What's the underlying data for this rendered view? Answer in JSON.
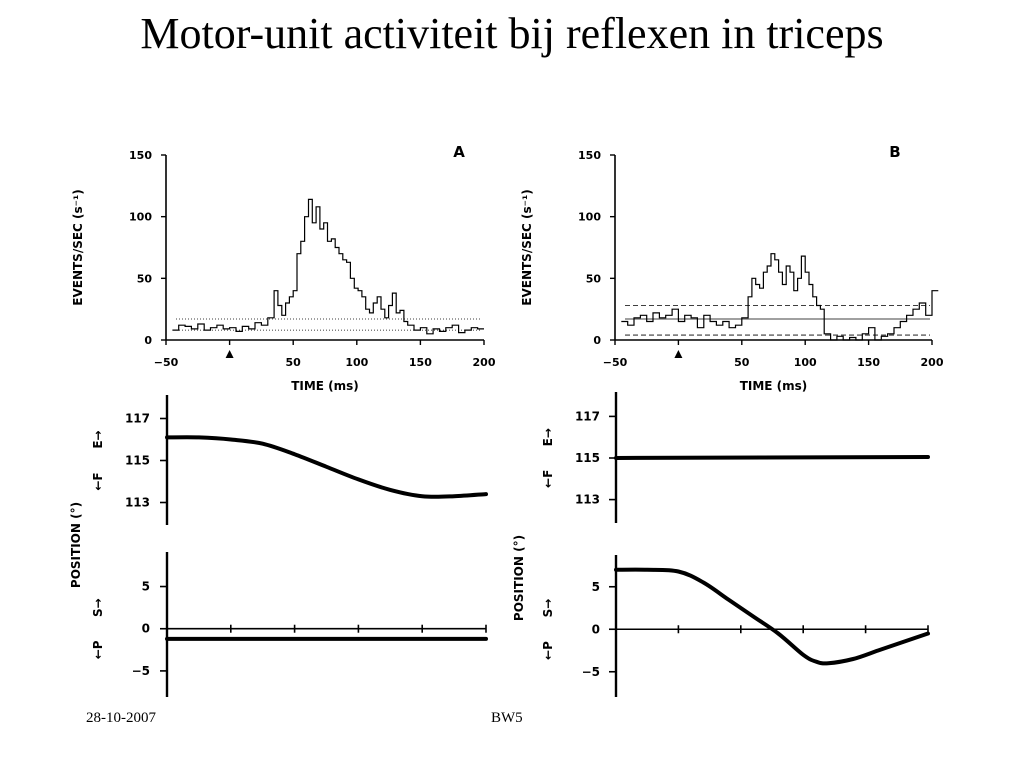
{
  "slide": {
    "title": "Motor-unit activiteit bij reflexen in triceps",
    "footer_left": "28-10-2007",
    "footer_center": "BW5"
  },
  "chart_data": [
    {
      "panel": "A",
      "type": "line",
      "subtype": "step-histogram",
      "ylabel": "EVENTS/SEC (s⁻¹)",
      "xlabel": "TIME (ms)",
      "xlim": [
        -50,
        200
      ],
      "ylim": [
        0,
        150
      ],
      "xticks": [
        -50,
        0,
        50,
        100,
        150,
        200
      ],
      "xtick_labels": [
        "−50",
        "",
        "50",
        "100",
        "150",
        "200"
      ],
      "yticks": [
        0,
        50,
        100,
        150
      ],
      "stimulus_marker_x": 0,
      "series": [
        {
          "style": "step",
          "x": [
            -45,
            -40,
            -35,
            -30,
            -25,
            -20,
            -15,
            -10,
            -5,
            0,
            5,
            10,
            15,
            20,
            25,
            30,
            35,
            38,
            41,
            44,
            47,
            50,
            53,
            56,
            59,
            62,
            65,
            68,
            71,
            74,
            77,
            80,
            83,
            86,
            89,
            92,
            95,
            98,
            101,
            104,
            107,
            110,
            113,
            116,
            119,
            122,
            125,
            128,
            131,
            134,
            137,
            140,
            145,
            150,
            155,
            160,
            165,
            170,
            175,
            180,
            185,
            190,
            195
          ],
          "y": [
            8,
            12,
            11,
            9,
            13,
            8,
            10,
            12,
            9,
            10,
            7,
            11,
            9,
            14,
            12,
            18,
            40,
            28,
            20,
            30,
            35,
            40,
            70,
            80,
            100,
            114,
            95,
            108,
            90,
            95,
            80,
            82,
            75,
            70,
            65,
            63,
            50,
            42,
            40,
            35,
            25,
            22,
            30,
            35,
            25,
            18,
            28,
            38,
            22,
            24,
            15,
            12,
            8,
            10,
            5,
            9,
            7,
            10,
            12,
            6,
            8,
            10,
            9
          ]
        }
      ],
      "reference_lines": [
        {
          "style": "dotted",
          "y": 17
        },
        {
          "style": "dotted",
          "y": 8
        }
      ]
    },
    {
      "panel": "B",
      "type": "line",
      "subtype": "step-histogram",
      "ylabel": "EVENTS/SEC (s⁻¹)",
      "xlabel": "TIME (ms)",
      "xlim": [
        -50,
        200
      ],
      "ylim": [
        0,
        150
      ],
      "xticks": [
        -50,
        0,
        50,
        100,
        150,
        200
      ],
      "xtick_labels": [
        "−50",
        "",
        "50",
        "100",
        "150",
        "200"
      ],
      "yticks": [
        0,
        50,
        100,
        150
      ],
      "stimulus_marker_x": 0,
      "series": [
        {
          "style": "step",
          "x": [
            -45,
            -40,
            -35,
            -30,
            -25,
            -20,
            -15,
            -10,
            -5,
            0,
            5,
            10,
            15,
            20,
            25,
            30,
            35,
            40,
            45,
            50,
            55,
            58,
            61,
            64,
            67,
            70,
            73,
            76,
            79,
            82,
            85,
            88,
            91,
            94,
            97,
            100,
            103,
            106,
            109,
            112,
            115,
            120,
            125,
            130,
            135,
            140,
            145,
            150,
            155,
            160,
            165,
            170,
            175,
            180,
            185,
            190,
            195,
            200
          ],
          "y": [
            15,
            12,
            18,
            20,
            15,
            22,
            18,
            20,
            25,
            15,
            20,
            18,
            10,
            20,
            15,
            12,
            15,
            10,
            12,
            18,
            35,
            50,
            45,
            42,
            55,
            60,
            70,
            65,
            55,
            45,
            60,
            55,
            40,
            50,
            68,
            55,
            45,
            35,
            28,
            25,
            5,
            0,
            3,
            0,
            2,
            0,
            5,
            10,
            0,
            3,
            5,
            10,
            15,
            20,
            25,
            30,
            20,
            40
          ]
        }
      ],
      "reference_lines": [
        {
          "style": "dashed",
          "y": 28
        },
        {
          "style": "solid",
          "y": 17
        },
        {
          "style": "dashed",
          "y": 4
        }
      ]
    },
    {
      "panel": "A-position",
      "type": "line",
      "ylabel": "POSITION (°)",
      "direction_labels": {
        "top": "E→",
        "bottom": "←F"
      },
      "yticks": [
        113,
        115,
        117
      ],
      "ylim": [
        112.5,
        117.5
      ],
      "xlim": [
        -50,
        200
      ],
      "series": [
        {
          "x": [
            -50,
            -25,
            0,
            25,
            50,
            75,
            100,
            125,
            150,
            175,
            200
          ],
          "y": [
            116.1,
            116.1,
            116.0,
            115.8,
            115.3,
            114.7,
            114.1,
            113.6,
            113.3,
            113.3,
            113.4
          ]
        }
      ]
    },
    {
      "panel": "A-velocity",
      "type": "line",
      "direction_labels": {
        "top": "S→",
        "bottom": "←P"
      },
      "yticks": [
        -5,
        0,
        5
      ],
      "ylim": [
        -7.5,
        8.5
      ],
      "xlim": [
        -50,
        200
      ],
      "x_tick_marks": [
        0,
        50,
        100,
        150,
        200
      ],
      "series": [
        {
          "x": [
            -50,
            200
          ],
          "y": [
            -1.2,
            -1.2
          ]
        }
      ],
      "zero_line": true
    },
    {
      "panel": "B-position",
      "type": "line",
      "ylabel": "POSITION (°)",
      "direction_labels": {
        "top": "E→",
        "bottom": "←F"
      },
      "yticks": [
        113,
        115,
        117
      ],
      "ylim": [
        112.5,
        117.5
      ],
      "xlim": [
        -50,
        200
      ],
      "series": [
        {
          "x": [
            -50,
            200
          ],
          "y": [
            115.0,
            115.05
          ]
        }
      ]
    },
    {
      "panel": "B-velocity",
      "type": "line",
      "direction_labels": {
        "top": "S→",
        "bottom": "←P"
      },
      "yticks": [
        -5,
        0,
        5
      ],
      "ylim": [
        -7.5,
        8.5
      ],
      "xlim": [
        -50,
        200
      ],
      "x_tick_marks": [
        0,
        50,
        100,
        150,
        200
      ],
      "series": [
        {
          "x": [
            -50,
            -25,
            0,
            20,
            40,
            60,
            80,
            100,
            110,
            120,
            140,
            160,
            180,
            200
          ],
          "y": [
            7,
            7,
            6.8,
            5.5,
            3.5,
            1.5,
            -0.5,
            -3,
            -3.8,
            -4,
            -3.5,
            -2.5,
            -1.5,
            -0.5
          ]
        }
      ],
      "zero_line": true
    }
  ]
}
